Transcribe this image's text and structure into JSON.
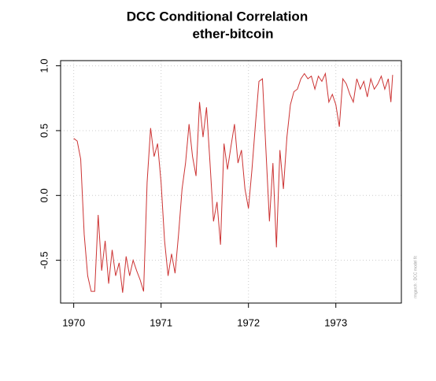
{
  "chart_data": {
    "type": "line",
    "title": "DCC Conditional Correlation",
    "subtitle": "ether-bitcoin",
    "annotation": "rmgarch  :  DCC model fit",
    "x": [
      1970.0,
      1970.04,
      1970.08,
      1970.12,
      1970.16,
      1970.2,
      1970.24,
      1970.28,
      1970.32,
      1970.36,
      1970.4,
      1970.44,
      1970.48,
      1970.52,
      1970.56,
      1970.6,
      1970.64,
      1970.68,
      1970.72,
      1970.76,
      1970.8,
      1970.84,
      1970.88,
      1970.92,
      1970.96,
      1971.0,
      1971.04,
      1971.08,
      1971.12,
      1971.16,
      1971.2,
      1971.24,
      1971.28,
      1971.32,
      1971.36,
      1971.4,
      1971.44,
      1971.48,
      1971.52,
      1971.56,
      1971.6,
      1971.64,
      1971.68,
      1971.72,
      1971.76,
      1971.8,
      1971.84,
      1971.88,
      1971.92,
      1971.96,
      1972.0,
      1972.04,
      1972.08,
      1972.12,
      1972.16,
      1972.2,
      1972.24,
      1972.28,
      1972.32,
      1972.36,
      1972.4,
      1972.44,
      1972.48,
      1972.52,
      1972.56,
      1972.6,
      1972.64,
      1972.68,
      1972.72,
      1972.76,
      1972.8,
      1972.84,
      1972.88,
      1972.92,
      1972.96,
      1973.0,
      1973.04,
      1973.08,
      1973.12,
      1973.16,
      1973.2,
      1973.24,
      1973.28,
      1973.32,
      1973.36,
      1973.4,
      1973.44,
      1973.48,
      1973.52,
      1973.56,
      1973.6,
      1973.63,
      1973.65
    ],
    "series": [
      {
        "name": "ether-bitcoin",
        "color": "#cc3333",
        "values": [
          0.44,
          0.42,
          0.28,
          -0.3,
          -0.62,
          -0.74,
          -0.74,
          -0.15,
          -0.58,
          -0.35,
          -0.68,
          -0.42,
          -0.62,
          -0.52,
          -0.75,
          -0.47,
          -0.62,
          -0.5,
          -0.58,
          -0.65,
          -0.74,
          0.1,
          0.52,
          0.3,
          0.4,
          0.1,
          -0.35,
          -0.62,
          -0.45,
          -0.6,
          -0.3,
          0.05,
          0.25,
          0.55,
          0.3,
          0.15,
          0.72,
          0.45,
          0.68,
          0.25,
          -0.2,
          -0.05,
          -0.38,
          0.4,
          0.2,
          0.38,
          0.55,
          0.25,
          0.35,
          0.05,
          -0.1,
          0.2,
          0.55,
          0.88,
          0.9,
          0.35,
          -0.2,
          0.25,
          -0.4,
          0.35,
          0.05,
          0.45,
          0.7,
          0.8,
          0.82,
          0.9,
          0.94,
          0.9,
          0.92,
          0.82,
          0.92,
          0.88,
          0.94,
          0.72,
          0.78,
          0.7,
          0.53,
          0.9,
          0.86,
          0.78,
          0.72,
          0.9,
          0.82,
          0.88,
          0.76,
          0.9,
          0.82,
          0.86,
          0.92,
          0.82,
          0.9,
          0.72,
          0.93
        ]
      }
    ],
    "xlim": [
      1969.85,
      1973.75
    ],
    "ylim": [
      -0.83,
      1.04
    ],
    "xticks": [
      1970,
      1971,
      1972,
      1973
    ],
    "yticks": [
      {
        "value": -0.5,
        "label": "-0.5"
      },
      {
        "value": 0,
        "label": "0.0"
      },
      {
        "value": 0.5,
        "label": "0.5"
      },
      {
        "value": 1,
        "label": "1.0"
      }
    ],
    "grid": true
  }
}
